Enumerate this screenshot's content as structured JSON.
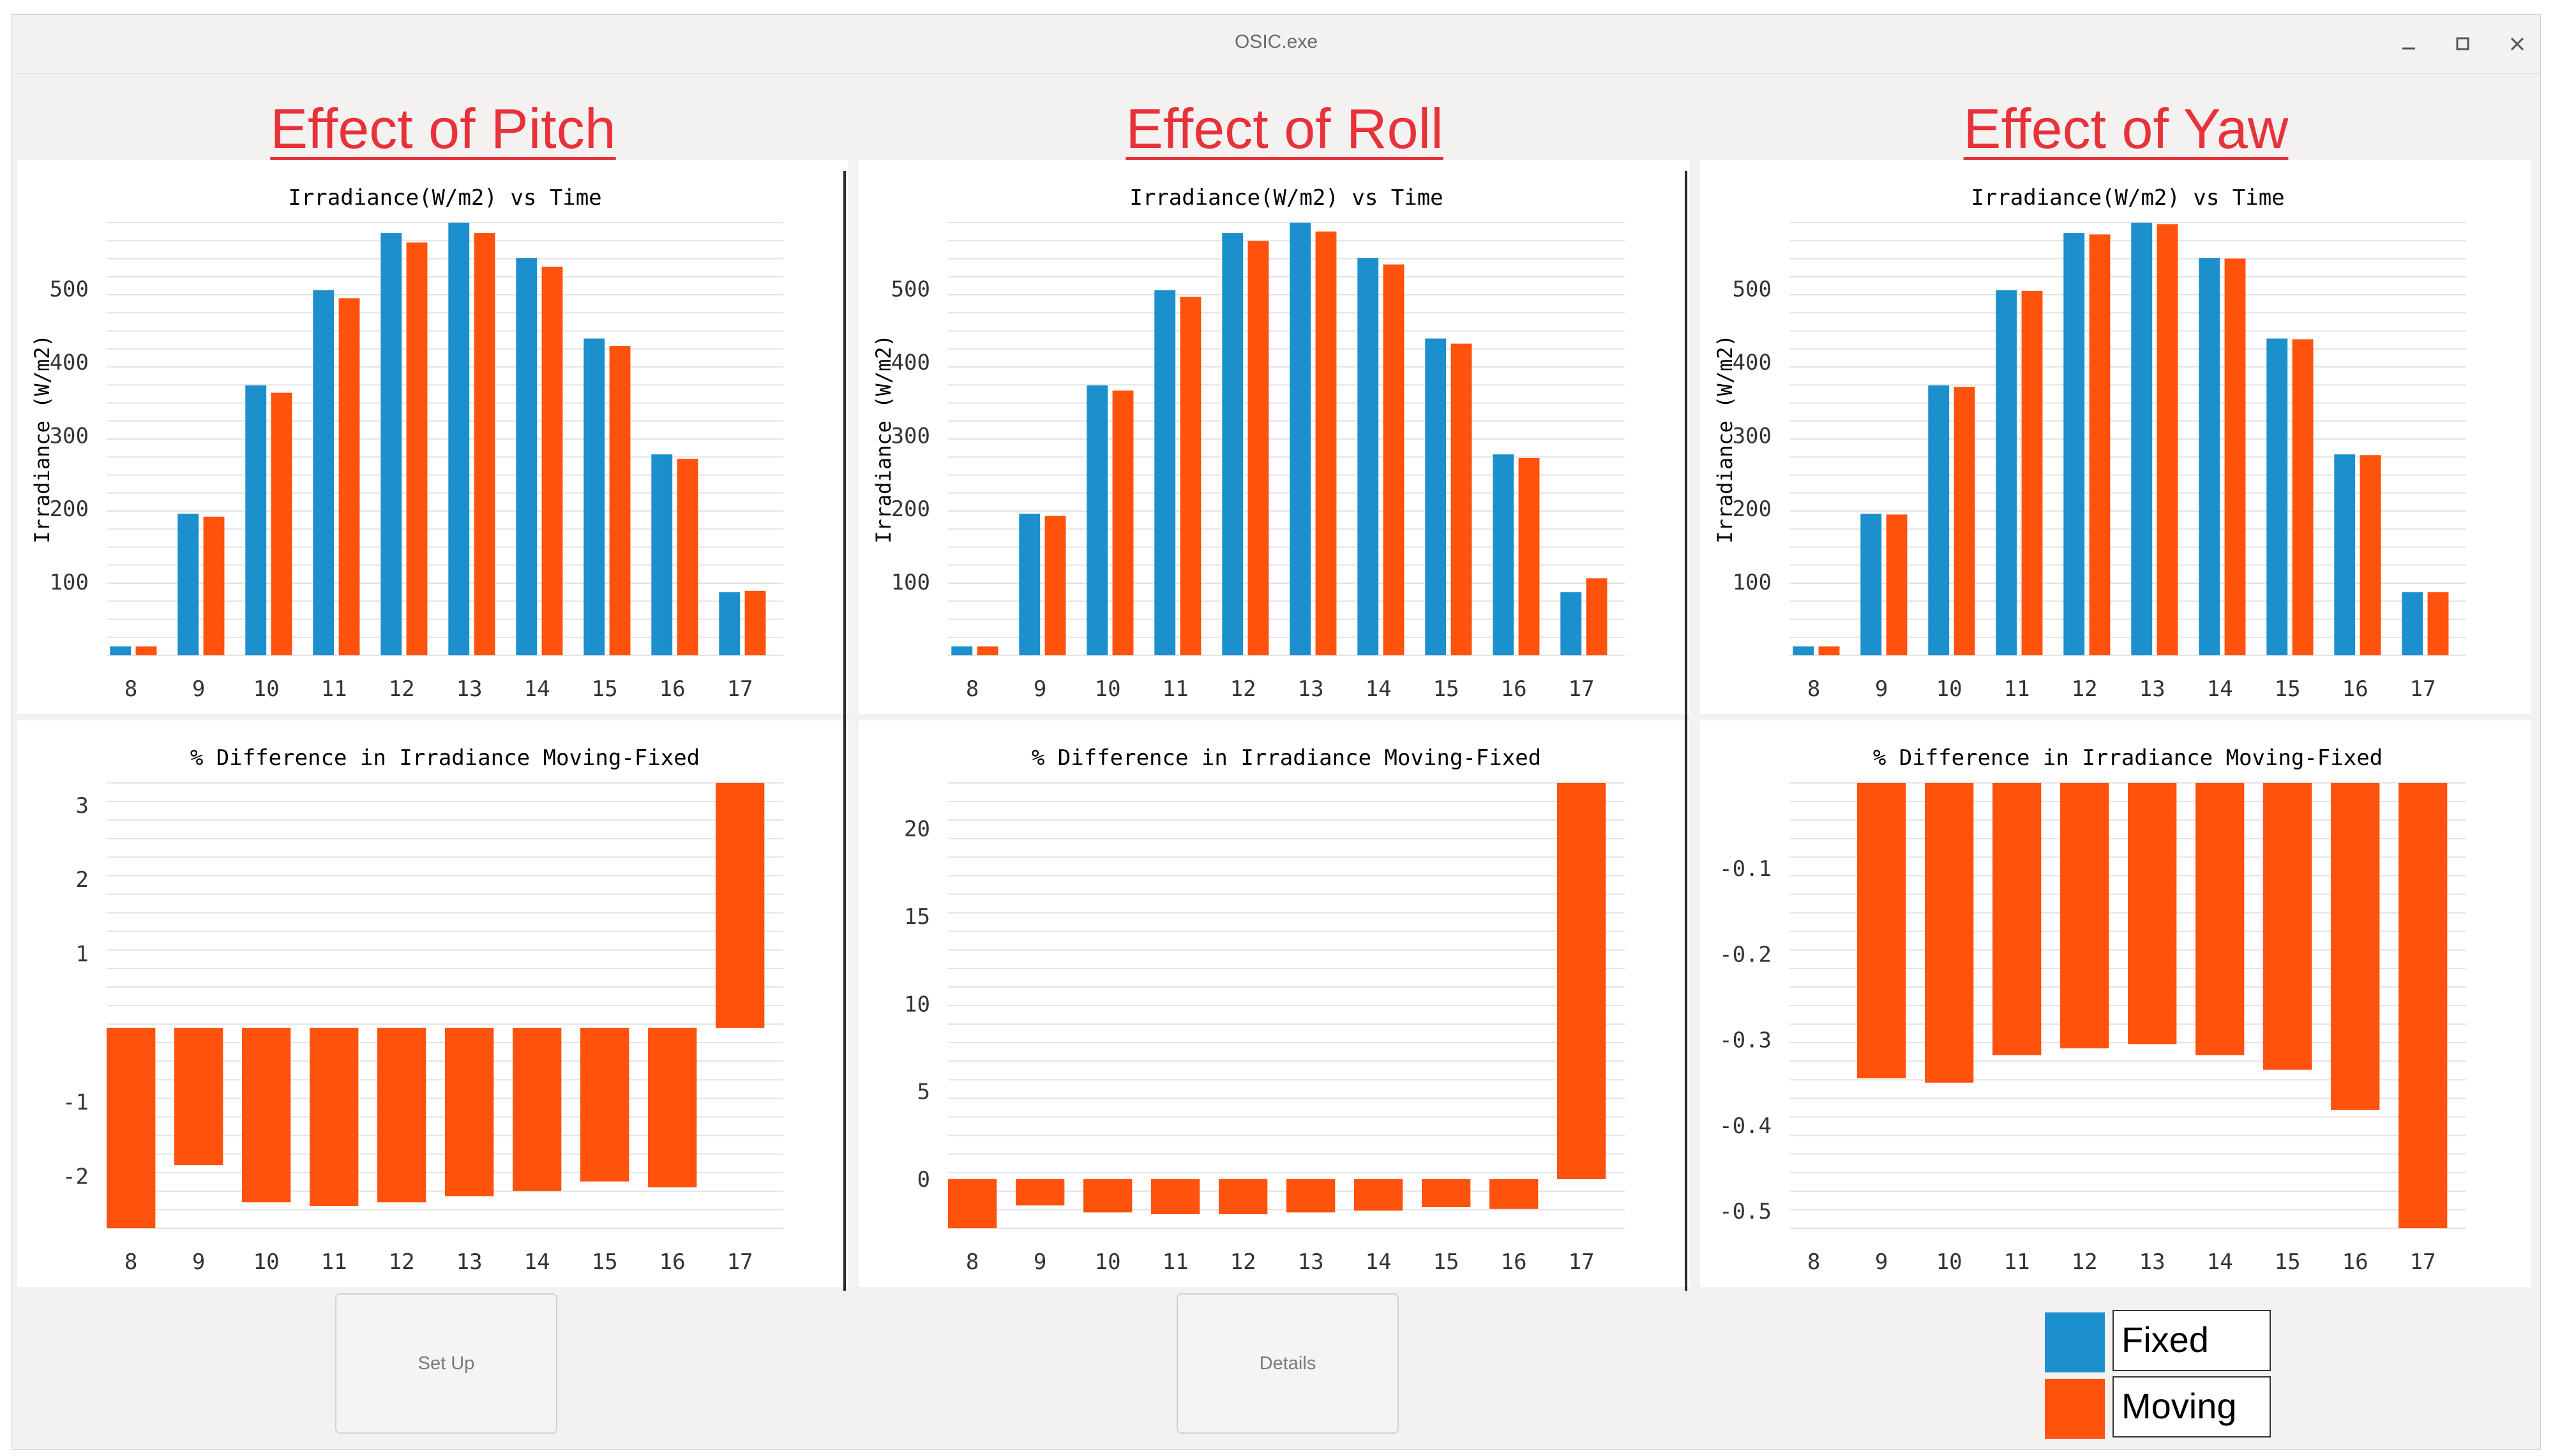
{
  "window": {
    "title": "OSIC.exe",
    "controls": {
      "minimize": "minimize",
      "maximize": "maximize",
      "close": "close"
    }
  },
  "colors": {
    "fixed": "#1c8fcd",
    "moving": "#ff520c",
    "heading": "#e8323a",
    "grid": "#e3e3e3"
  },
  "panels": [
    {
      "heading": "Effect of Pitch"
    },
    {
      "heading": "Effect of Roll"
    },
    {
      "heading": "Effect of Yaw"
    }
  ],
  "buttons": {
    "setup": "Set Up",
    "details": "Details"
  },
  "legend": {
    "fixed_label": "Fixed",
    "moving_label": "Moving"
  },
  "chart_data": [
    {
      "id": "pitch-irradiance",
      "type": "bar",
      "title": "Irradiance(W/m2) vs Time",
      "xlabel": "",
      "ylabel": "Irradiance (W/m2)",
      "categories": [
        "8",
        "9",
        "10",
        "11",
        "12",
        "13",
        "14",
        "15",
        "16",
        "17"
      ],
      "series": [
        {
          "name": "Fixed",
          "values": [
            12,
            193,
            368,
            498,
            576,
            590,
            542,
            432,
            274,
            86
          ]
        },
        {
          "name": "Moving",
          "values": [
            12,
            189,
            358,
            487,
            563,
            576,
            530,
            422,
            268,
            88
          ]
        }
      ],
      "ylim": [
        0,
        590
      ],
      "yticks": [
        100,
        200,
        300,
        400,
        500
      ]
    },
    {
      "id": "roll-irradiance",
      "type": "bar",
      "title": "Irradiance(W/m2) vs Time",
      "xlabel": "",
      "ylabel": "Irradiance (W/m2)",
      "categories": [
        "8",
        "9",
        "10",
        "11",
        "12",
        "13",
        "14",
        "15",
        "16",
        "17"
      ],
      "series": [
        {
          "name": "Fixed",
          "values": [
            12,
            193,
            368,
            498,
            576,
            590,
            542,
            432,
            274,
            86
          ]
        },
        {
          "name": "Moving",
          "values": [
            12,
            190,
            361,
            489,
            565,
            578,
            533,
            425,
            269,
            105
          ]
        }
      ],
      "ylim": [
        0,
        590
      ],
      "yticks": [
        100,
        200,
        300,
        400,
        500
      ]
    },
    {
      "id": "yaw-irradiance",
      "type": "bar",
      "title": "Irradiance(W/m2) vs Time",
      "xlabel": "",
      "ylabel": "Irradiance (W/m2)",
      "categories": [
        "8",
        "9",
        "10",
        "11",
        "12",
        "13",
        "14",
        "15",
        "16",
        "17"
      ],
      "series": [
        {
          "name": "Fixed",
          "values": [
            12,
            193,
            368,
            498,
            576,
            590,
            542,
            432,
            274,
            86
          ]
        },
        {
          "name": "Moving",
          "values": [
            12,
            192,
            366,
            497,
            574,
            588,
            541,
            431,
            273,
            86
          ]
        }
      ],
      "ylim": [
        0,
        590
      ],
      "yticks": [
        100,
        200,
        300,
        400,
        500
      ]
    },
    {
      "id": "pitch-difference",
      "type": "bar",
      "title": "% Difference in Irradiance Moving-Fixed",
      "xlabel": "",
      "ylabel": "",
      "categories": [
        "8",
        "9",
        "10",
        "11",
        "12",
        "13",
        "14",
        "15",
        "16",
        "17"
      ],
      "series": [
        {
          "name": "Moving-Fixed",
          "values": [
            -2.7,
            -1.85,
            -2.35,
            -2.4,
            -2.35,
            -2.27,
            -2.2,
            -2.07,
            -2.15,
            3.3
          ]
        }
      ],
      "ylim": [
        -2.7,
        3.3
      ],
      "yticks": [
        -2,
        -1,
        1,
        2,
        3
      ]
    },
    {
      "id": "roll-difference",
      "type": "bar",
      "title": "% Difference in Irradiance Moving-Fixed",
      "xlabel": "",
      "ylabel": "",
      "categories": [
        "8",
        "9",
        "10",
        "11",
        "12",
        "13",
        "14",
        "15",
        "16",
        "17"
      ],
      "series": [
        {
          "name": "Moving-Fixed",
          "values": [
            -2.8,
            -1.5,
            -1.9,
            -2.0,
            -2.0,
            -1.9,
            -1.8,
            -1.6,
            -1.7,
            22.6
          ]
        }
      ],
      "ylim": [
        -2.8,
        22.6
      ],
      "yticks": [
        0,
        5,
        10,
        15,
        20
      ]
    },
    {
      "id": "yaw-difference",
      "type": "bar",
      "title": "% Difference in Irradiance Moving-Fixed",
      "xlabel": "",
      "ylabel": "",
      "categories": [
        "8",
        "9",
        "10",
        "11",
        "12",
        "13",
        "14",
        "15",
        "16",
        "17"
      ],
      "series": [
        {
          "name": "Moving-Fixed",
          "values": [
            0,
            -0.345,
            -0.35,
            -0.318,
            -0.31,
            -0.305,
            -0.318,
            -0.335,
            -0.382,
            -0.52
          ]
        }
      ],
      "ylim": [
        -0.52,
        0
      ],
      "yticks": [
        -0.1,
        -0.2,
        -0.3,
        -0.4,
        -0.5
      ]
    }
  ]
}
